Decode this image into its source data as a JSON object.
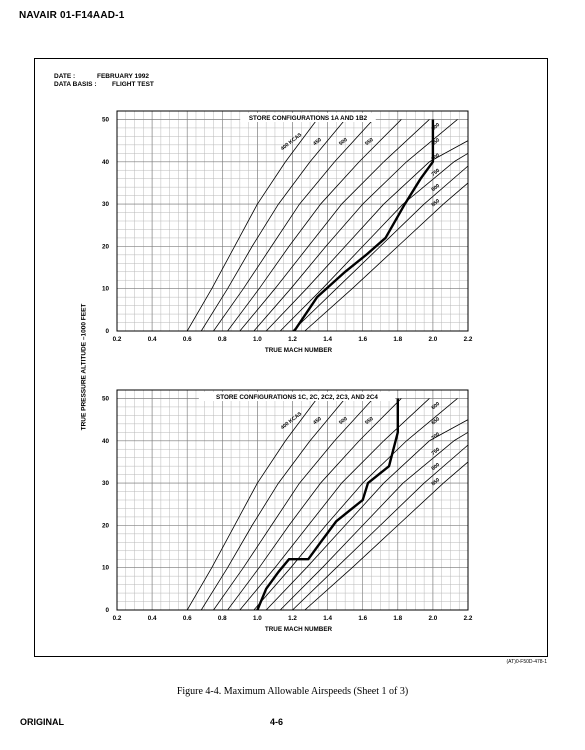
{
  "header": {
    "doc_id": "NAVAIR 01-F14AAD-1"
  },
  "meta": {
    "date_label": "DATE :",
    "date_value": "FEBRUARY 1992",
    "basis_label": "DATA BASIS :",
    "basis_value": "FLIGHT TEST"
  },
  "ylabel": "TRUE PRESSURE ALTITUDE –1000 FEET",
  "figure_code": "(AT)0-F50D-478-1",
  "caption": "Figure 4-4.  Maximum Allowable Airspeeds (Sheet 1 of 3)",
  "footer": {
    "left": "ORIGINAL",
    "center": "4-6"
  },
  "colors": {
    "ink": "#000000",
    "grid": "#b9b9b9",
    "paper": "#ffffff"
  },
  "chart_data": [
    {
      "type": "line",
      "title": "STORE CONFIGURATIONS 1A AND 1B2",
      "xlabel": "TRUE MACH NUMBER",
      "ylabel": "TRUE PRESSURE ALTITUDE –1000 FEET",
      "xlim": [
        0.2,
        2.2
      ],
      "ylim": [
        0,
        52
      ],
      "xticks": [
        "0.2",
        "0.4",
        "0.6",
        "0.8",
        "1.0",
        "1.2",
        "1.4",
        "1.6",
        "1.8",
        "2.0",
        "2.2"
      ],
      "yticks": [
        "0",
        "10",
        "20",
        "30",
        "40",
        "50"
      ],
      "grid": true,
      "series": [
        {
          "name": "400 KCAS",
          "x": [
            0.6,
            0.74,
            0.87,
            1.0,
            1.16,
            1.34
          ],
          "y": [
            0,
            10,
            20,
            30,
            40,
            50
          ]
        },
        {
          "name": "450",
          "x": [
            0.68,
            0.83,
            0.97,
            1.12,
            1.3,
            1.5
          ],
          "y": [
            0,
            10,
            20,
            30,
            40,
            50
          ]
        },
        {
          "name": "500",
          "x": [
            0.75,
            0.92,
            1.08,
            1.24,
            1.44,
            1.66
          ],
          "y": [
            0,
            10,
            20,
            30,
            40,
            50
          ]
        },
        {
          "name": "550",
          "x": [
            0.83,
            1.01,
            1.18,
            1.36,
            1.58,
            1.82
          ],
          "y": [
            0,
            10,
            20,
            30,
            40,
            50
          ]
        },
        {
          "name": "600",
          "x": [
            0.9,
            1.1,
            1.29,
            1.48,
            1.72,
            1.98
          ],
          "y": [
            0,
            10,
            20,
            30,
            40,
            50
          ]
        },
        {
          "name": "650",
          "x": [
            0.98,
            1.19,
            1.39,
            1.6,
            1.85,
            2.14
          ],
          "y": [
            0,
            10,
            20,
            30,
            40,
            50
          ]
        },
        {
          "name": "700",
          "x": [
            1.05,
            1.28,
            1.5,
            1.72,
            1.98,
            2.2
          ],
          "y": [
            0,
            10,
            20,
            30,
            40,
            45
          ]
        },
        {
          "name": "750",
          "x": [
            1.13,
            1.37,
            1.6,
            1.83,
            2.12,
            2.2
          ],
          "y": [
            0,
            10,
            20,
            30,
            40,
            42
          ]
        },
        {
          "name": "800",
          "x": [
            1.2,
            1.45,
            1.7,
            1.95,
            2.2
          ],
          "y": [
            0,
            10,
            20,
            30,
            39
          ]
        },
        {
          "name": "850",
          "x": [
            1.27,
            1.54,
            1.8,
            2.06,
            2.2
          ],
          "y": [
            0,
            10,
            20,
            30,
            35
          ]
        },
        {
          "name": "",
          "role": "limit",
          "x": [
            1.21,
            1.34,
            1.5,
            1.62,
            1.73,
            1.84,
            1.93,
            2.0,
            2.0
          ],
          "y": [
            0,
            8,
            14,
            18,
            22,
            30,
            36,
            40,
            50
          ]
        }
      ]
    },
    {
      "type": "line",
      "title": "STORE CONFIGURATIONS 1C, 2C, 2C2, 2C3, AND 2C4",
      "xlabel": "TRUE MACH NUMBER",
      "ylabel": "TRUE PRESSURE ALTITUDE –1000 FEET",
      "xlim": [
        0.2,
        2.2
      ],
      "ylim": [
        0,
        52
      ],
      "xticks": [
        "0.2",
        "0.4",
        "0.6",
        "0.8",
        "1.0",
        "1.2",
        "1.4",
        "1.6",
        "1.8",
        "2.0",
        "2.2"
      ],
      "yticks": [
        "0",
        "10",
        "20",
        "30",
        "40",
        "50"
      ],
      "grid": true,
      "series": [
        {
          "name": "400 KCAS",
          "x": [
            0.6,
            0.74,
            0.87,
            1.0,
            1.16,
            1.34
          ],
          "y": [
            0,
            10,
            20,
            30,
            40,
            50
          ]
        },
        {
          "name": "450",
          "x": [
            0.68,
            0.83,
            0.97,
            1.12,
            1.3,
            1.5
          ],
          "y": [
            0,
            10,
            20,
            30,
            40,
            50
          ]
        },
        {
          "name": "500",
          "x": [
            0.75,
            0.92,
            1.08,
            1.24,
            1.44,
            1.66
          ],
          "y": [
            0,
            10,
            20,
            30,
            40,
            50
          ]
        },
        {
          "name": "550",
          "x": [
            0.83,
            1.01,
            1.18,
            1.36,
            1.58,
            1.82
          ],
          "y": [
            0,
            10,
            20,
            30,
            40,
            50
          ]
        },
        {
          "name": "600",
          "x": [
            0.9,
            1.1,
            1.29,
            1.48,
            1.72,
            1.98
          ],
          "y": [
            0,
            10,
            20,
            30,
            40,
            50
          ]
        },
        {
          "name": "650",
          "x": [
            0.98,
            1.19,
            1.39,
            1.6,
            1.85,
            2.14
          ],
          "y": [
            0,
            10,
            20,
            30,
            40,
            50
          ]
        },
        {
          "name": "700",
          "x": [
            1.05,
            1.28,
            1.5,
            1.72,
            1.98,
            2.2
          ],
          "y": [
            0,
            10,
            20,
            30,
            40,
            45
          ]
        },
        {
          "name": "750",
          "x": [
            1.13,
            1.37,
            1.6,
            1.83,
            2.12,
            2.2
          ],
          "y": [
            0,
            10,
            20,
            30,
            40,
            42
          ]
        },
        {
          "name": "800",
          "x": [
            1.2,
            1.45,
            1.7,
            1.95,
            2.2
          ],
          "y": [
            0,
            10,
            20,
            30,
            39
          ]
        },
        {
          "name": "850",
          "x": [
            1.27,
            1.54,
            1.8,
            2.06,
            2.2
          ],
          "y": [
            0,
            10,
            20,
            30,
            35
          ]
        },
        {
          "name": "",
          "role": "limit",
          "x": [
            1.0,
            1.05,
            1.12,
            1.18,
            1.29,
            1.36,
            1.45,
            1.6,
            1.63,
            1.75,
            1.8,
            1.8
          ],
          "y": [
            0,
            5,
            9,
            12,
            12,
            16,
            21,
            26,
            30,
            34,
            42,
            50
          ]
        }
      ]
    }
  ]
}
